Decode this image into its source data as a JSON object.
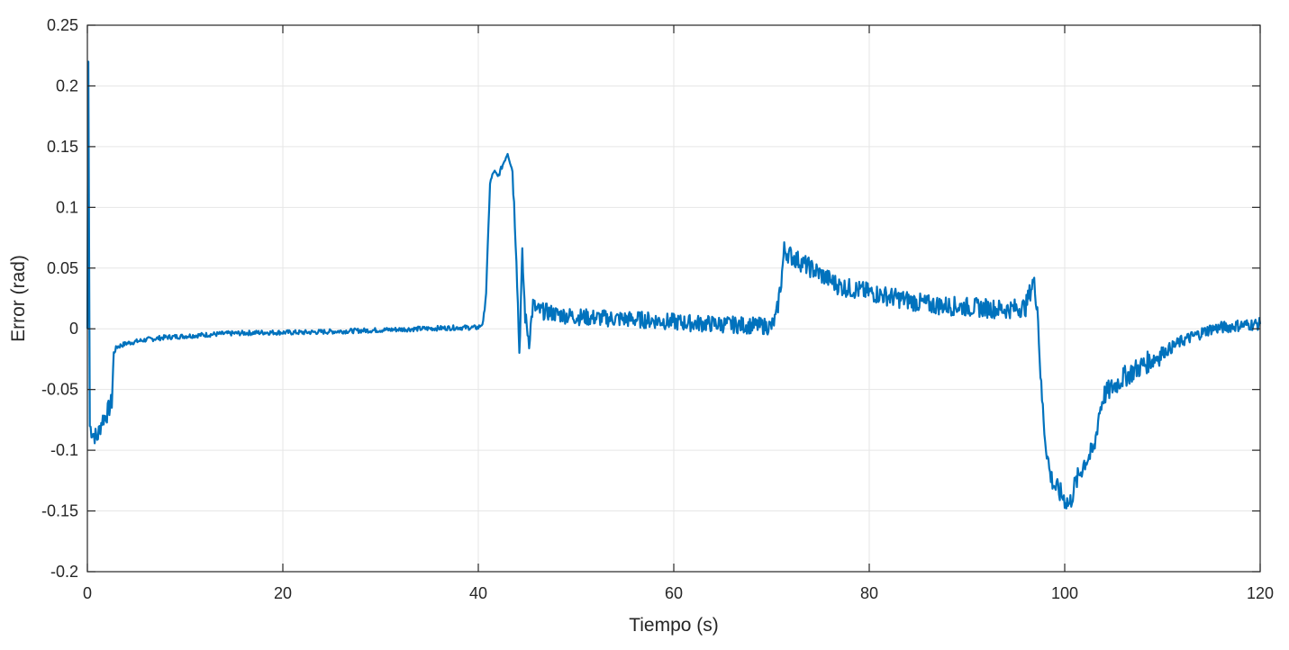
{
  "chart_data": {
    "type": "line",
    "title": "",
    "xlabel": "Tiempo (s)",
    "ylabel": "Error (rad)",
    "xlim": [
      0,
      120
    ],
    "ylim": [
      -0.2,
      0.25
    ],
    "grid": true,
    "xticks": [
      0,
      20,
      40,
      60,
      80,
      100,
      120
    ],
    "xtick_labels": [
      "0",
      "20",
      "40",
      "60",
      "80",
      "100",
      "120"
    ],
    "yticks": [
      -0.2,
      -0.15,
      -0.1,
      -0.05,
      0,
      0.05,
      0.1,
      0.15,
      0.2,
      0.25
    ],
    "ytick_labels": [
      "-0.2",
      "-0.15",
      "-0.1",
      "-0.05",
      "0",
      "0.05",
      "0.1",
      "0.15",
      "0.2",
      "0.25"
    ],
    "series": [
      {
        "color": "#0072BD",
        "x": [
          0,
          0.1,
          0.25,
          0.5,
          1,
          1.5,
          2,
          2.5,
          2.7,
          3,
          4,
          6,
          8,
          10,
          14,
          18,
          22,
          26,
          30,
          34,
          38,
          40,
          40.5,
          40.8,
          41.2,
          41.6,
          42,
          42.5,
          43,
          43.5,
          43.9,
          44.2,
          44.5,
          44.8,
          45.2,
          45.6,
          46,
          47,
          48,
          50,
          52,
          55,
          58,
          61,
          64,
          67,
          70,
          70.5,
          71,
          71.3,
          72,
          73,
          75,
          77,
          80,
          83,
          86,
          90,
          94,
          96,
          96.8,
          97.2,
          97.6,
          98,
          98.5,
          99,
          99.5,
          100,
          100.5,
          101,
          101.5,
          102,
          102.5,
          103,
          103.5,
          104,
          106,
          108,
          110,
          112,
          115,
          118,
          120
        ],
        "y": [
          0,
          0.22,
          -0.08,
          -0.085,
          -0.09,
          -0.075,
          -0.07,
          -0.06,
          -0.02,
          -0.015,
          -0.012,
          -0.009,
          -0.007,
          -0.006,
          -0.004,
          -0.003,
          -0.003,
          -0.002,
          -0.001,
          0,
          0.001,
          0.001,
          0.005,
          0.03,
          0.12,
          0.13,
          0.125,
          0.135,
          0.145,
          0.13,
          0.06,
          -0.02,
          0.06,
          0.01,
          -0.01,
          0.02,
          0.015,
          0.014,
          0.012,
          0.01,
          0.009,
          0.008,
          0.007,
          0.005,
          0.004,
          0.003,
          0.002,
          0.01,
          0.04,
          0.065,
          0.06,
          0.055,
          0.045,
          0.035,
          0.03,
          0.025,
          0.02,
          0.018,
          0.016,
          0.018,
          0.04,
          0.02,
          -0.05,
          -0.09,
          -0.12,
          -0.13,
          -0.135,
          -0.14,
          -0.145,
          -0.13,
          -0.12,
          -0.11,
          -0.105,
          -0.1,
          -0.07,
          -0.055,
          -0.04,
          -0.03,
          -0.02,
          -0.01,
          0.0,
          0.003,
          0.004
        ]
      }
    ]
  }
}
